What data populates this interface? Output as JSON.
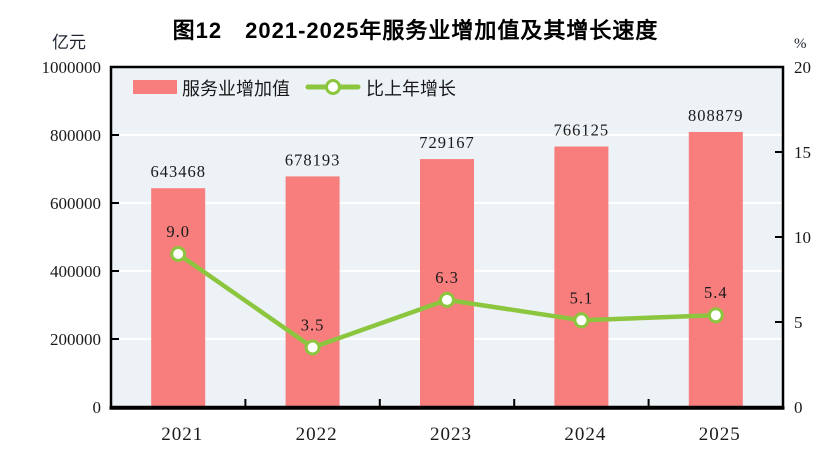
{
  "title": "图12　2021-2025年服务业增加值及其增长速度",
  "left_axis": {
    "unit": "亿元",
    "ticks": [
      {
        "value": 0,
        "label": "0"
      },
      {
        "value": 200000,
        "label": "200000"
      },
      {
        "value": 400000,
        "label": "400000"
      },
      {
        "value": 600000,
        "label": "600000"
      },
      {
        "value": 800000,
        "label": "800000"
      },
      {
        "value": 1000000,
        "label": "1000000"
      }
    ],
    "max": 1000000
  },
  "right_axis": {
    "unit": "%",
    "ticks": [
      {
        "value": 0,
        "label": "0"
      },
      {
        "value": 5,
        "label": "5"
      },
      {
        "value": 10,
        "label": "10"
      },
      {
        "value": 15,
        "label": "15"
      },
      {
        "value": 20,
        "label": "20"
      }
    ],
    "max": 20
  },
  "legend": {
    "bar_label": "服务业增加值",
    "line_label": "比上年增长"
  },
  "colors": {
    "bar": "#F87D7D",
    "line": "#8CC63F",
    "marker_fill": "#FFFFFF",
    "plot_background": "#ECF2F6",
    "gridline": "#FFFFFF",
    "axis": "#000000",
    "label_text": "#1a1a1a"
  },
  "chart_data": {
    "type": "bar",
    "subtype": "combo-bar-line-dual-axis",
    "title": "图12　2021-2025年服务业增加值及其增长速度",
    "categories": [
      "2021",
      "2022",
      "2023",
      "2024",
      "2025"
    ],
    "series": [
      {
        "name": "服务业增加值",
        "render": "bar",
        "axis": "left",
        "values": [
          643468,
          678193,
          729167,
          766125,
          808879
        ],
        "labels": [
          "643468",
          "678193",
          "729167",
          "766125",
          "808879"
        ],
        "color": "#F87D7D"
      },
      {
        "name": "比上年增长",
        "render": "line",
        "axis": "right",
        "values": [
          9.0,
          3.5,
          6.3,
          5.1,
          5.4
        ],
        "labels": [
          "9.0",
          "3.5",
          "6.3",
          "5.1",
          "5.4"
        ],
        "color": "#8CC63F"
      }
    ],
    "left_ylabel": "亿元",
    "right_ylabel": "%",
    "left_ylim": [
      0,
      1000000
    ],
    "right_ylim": [
      0,
      20
    ],
    "grid": true,
    "gridline_values_left": [
      200000,
      400000,
      600000,
      800000
    ],
    "legend_position": "top-left-inside"
  }
}
